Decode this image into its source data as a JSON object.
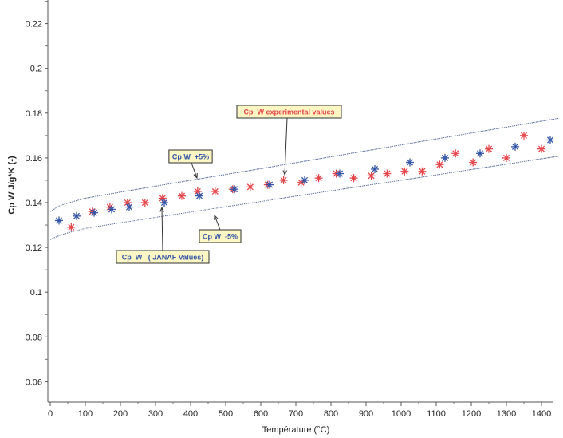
{
  "chart_data": {
    "type": "scatter",
    "xlabel": "Température (°C)",
    "ylabel": "Cp W J/g*K (-)",
    "xlim": [
      -5,
      1450
    ],
    "ylim": [
      0.048,
      0.231
    ],
    "xticks": [
      0,
      100,
      200,
      300,
      400,
      500,
      600,
      700,
      800,
      900,
      1000,
      1100,
      1200,
      1300,
      1400
    ],
    "yticks": [
      "0.06",
      "0.08",
      "0.1",
      "0.12",
      "0.14",
      "0.16",
      "0.18",
      "0.2",
      "0.22"
    ],
    "grid": false,
    "colors": {
      "experimental": "#e4474b",
      "janaf": "#3556a8",
      "band": "#5b6d9c",
      "annotation_bg": "#fbf6c4"
    },
    "series": [
      {
        "marker": "asterisk",
        "color": "#e4474b",
        "x": [
          60,
          120,
          170,
          220,
          270,
          320,
          375,
          420,
          470,
          520,
          570,
          620,
          665,
          715,
          765,
          815,
          865,
          915,
          960,
          1010,
          1060,
          1110,
          1155,
          1205,
          1250,
          1300,
          1350,
          1400
        ],
        "y": [
          0.129,
          0.136,
          0.138,
          0.14,
          0.14,
          0.142,
          0.143,
          0.145,
          0.145,
          0.146,
          0.147,
          0.148,
          0.15,
          0.149,
          0.151,
          0.153,
          0.151,
          0.152,
          0.153,
          0.154,
          0.154,
          0.157,
          0.162,
          0.158,
          0.164,
          0.16,
          0.17,
          0.164
        ]
      },
      {
        "marker": "asterisk",
        "color": "#3556a8",
        "x": [
          25,
          75,
          125,
          175,
          225,
          325,
          425,
          525,
          625,
          725,
          825,
          925,
          1025,
          1125,
          1225,
          1325,
          1425
        ],
        "y": [
          0.132,
          0.134,
          0.1355,
          0.137,
          0.138,
          0.14,
          0.143,
          0.146,
          0.148,
          0.15,
          0.153,
          0.155,
          0.158,
          0.16,
          0.162,
          0.165,
          0.168
        ]
      },
      {
        "line": "dotted",
        "color": "#5b6d9c",
        "x": [
          0,
          25,
          50,
          100,
          200,
          400,
          600,
          800,
          1000,
          1200,
          1450
        ],
        "y": [
          0.136,
          0.1385,
          0.1398,
          0.142,
          0.1447,
          0.15,
          0.1552,
          0.1605,
          0.1658,
          0.1711,
          0.1777
        ]
      },
      {
        "line": "dotted",
        "color": "#5b6d9c",
        "x": [
          0,
          25,
          50,
          100,
          200,
          400,
          600,
          800,
          1000,
          1200,
          1450
        ],
        "y": [
          0.1235,
          0.1253,
          0.1265,
          0.1285,
          0.131,
          0.1358,
          0.1405,
          0.1453,
          0.15,
          0.1548,
          0.1608
        ]
      }
    ],
    "annotations": [
      {
        "text": "Cp  W experimental values",
        "color": "#e4474b"
      },
      {
        "text": "Cp W  +5%",
        "color": "#3556a8"
      },
      {
        "text": "Cp W  -5%",
        "color": "#3556a8"
      },
      {
        "text": "Cp  W   ( JANAF Values)",
        "color": "#3556a8"
      }
    ]
  }
}
